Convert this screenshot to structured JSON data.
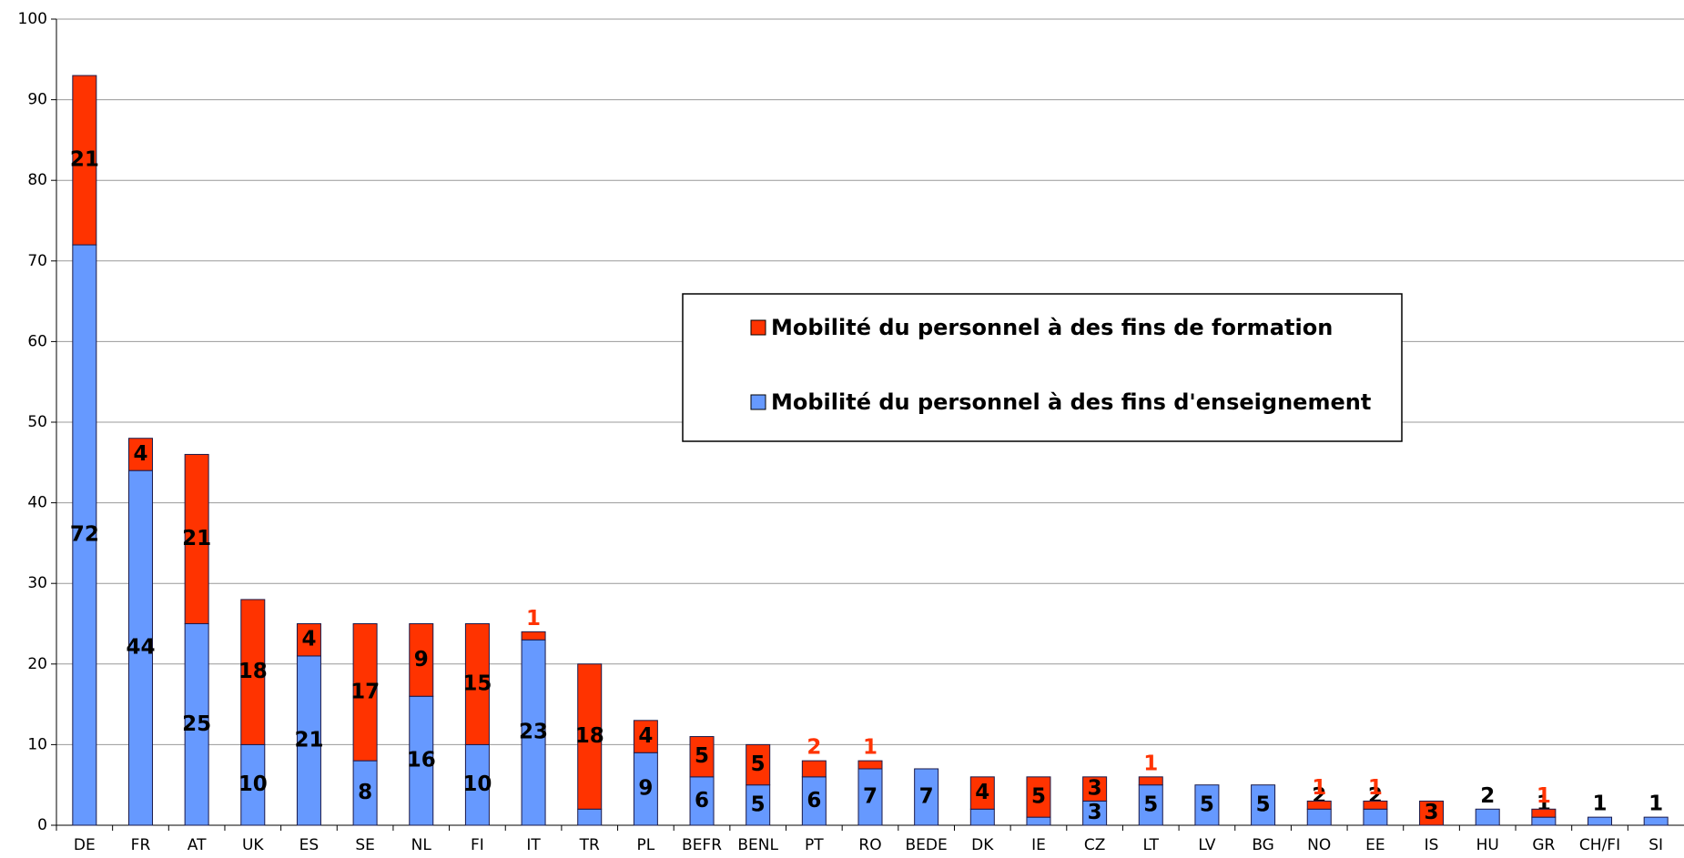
{
  "chart_data": {
    "type": "bar",
    "categories": [
      "DE",
      "FR",
      "AT",
      "UK",
      "ES",
      "SE",
      "NL",
      "FI",
      "IT",
      "TR",
      "PL",
      "BEFR",
      "BENL",
      "PT",
      "RO",
      "BEDE",
      "DK",
      "IE",
      "CZ",
      "LT",
      "LV",
      "BG",
      "NO",
      "EE",
      "IS",
      "HU",
      "GR",
      "CH/FI",
      "SI"
    ],
    "series": [
      {
        "name": "Mobilité du personnel à des fins d'enseignement",
        "color": "#6699ff",
        "values": [
          72,
          44,
          25,
          10,
          21,
          8,
          16,
          10,
          23,
          2,
          9,
          6,
          5,
          6,
          7,
          7,
          2,
          1,
          3,
          5,
          5,
          5,
          2,
          2,
          0,
          2,
          1,
          1,
          1
        ],
        "value_labels": [
          "72",
          "44",
          "25",
          "10",
          "21",
          "8",
          "16",
          "10",
          "23",
          "2",
          "9",
          "6",
          "5",
          "6",
          "7",
          "7",
          "2",
          "1",
          "3",
          "5",
          "5",
          "5",
          "2",
          "2",
          null,
          "2",
          "1",
          "1",
          "1"
        ]
      },
      {
        "name": "Mobilité du personnel à des fins de formation",
        "color": "#ff3300",
        "values": [
          21,
          4,
          21,
          18,
          4,
          17,
          9,
          15,
          1,
          18,
          4,
          5,
          5,
          2,
          1,
          0,
          4,
          5,
          3,
          1,
          0,
          0,
          1,
          1,
          3,
          0,
          1,
          0,
          0
        ],
        "value_labels": [
          "21",
          "4",
          "21",
          "18",
          "4",
          "17",
          "9",
          "15",
          "1",
          "18",
          "4",
          "5",
          "5",
          "2",
          "1",
          null,
          "4",
          "5",
          "3",
          "1",
          null,
          null,
          "1",
          "1",
          "3",
          null,
          "1",
          null,
          null
        ]
      }
    ],
    "stacked": true,
    "ylim": [
      0,
      100
    ],
    "yticks": [
      0,
      10,
      20,
      30,
      40,
      50,
      60,
      70,
      80,
      90,
      100
    ],
    "grid": true,
    "legend": "center"
  }
}
